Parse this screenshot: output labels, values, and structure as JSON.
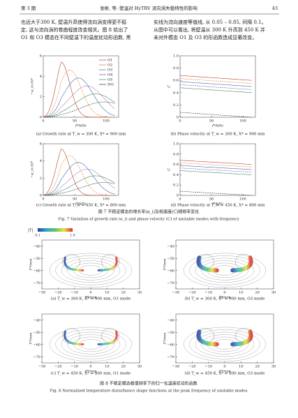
{
  "header": {
    "issue": "第 3 期",
    "title": "张彬, 等: 壁温对 HyTRV 流向涡失稳特性的影响",
    "page": "43"
  },
  "body": {
    "left": [
      "也远大于300 K, 壁温升高使得流向涡变得更不稳",
      "定, 这与流向涡的卷曲程度改变相关。图 8 给出了",
      "O1 和 O3 模态在不同壁温下的温度扰动形函数, 黑"
    ],
    "right": [
      "实线为流向速度等值线, 从 0.05 – 0.85, 间隔 0.1。",
      "从图中可以看出, 将壁温从 300 K 升高到 450 K 并",
      "未对外模态 O1 及 O3 的形函数造成显著改变。"
    ]
  },
  "fig7": {
    "growth_axes": {
      "xlim": [
        0,
        120
      ],
      "ylim": [
        0,
        6
      ],
      "xticks": [
        0,
        50,
        100
      ],
      "yticks": [
        0,
        2,
        4,
        6
      ],
      "xlabel": "f*/kHz",
      "ylabel": "−α_i×10³"
    },
    "phase_axes": {
      "xlim": [
        0,
        120
      ],
      "ylim": [
        0,
        1
      ],
      "xticks": [
        0,
        50,
        100
      ],
      "yticks": [
        0,
        0.2,
        0.4,
        0.6,
        0.8,
        {
          "value": 1,
          "label": "1.0"
        }
      ],
      "xlabel": "f*/kHz",
      "ylabel": "C"
    },
    "legend": [
      "O1",
      "O2",
      "O3",
      "O4",
      "O5",
      "IN1"
    ],
    "captions": [
      "(a) Growth rate at T_w = 300 K, X* = 900 mm",
      "(b) Phase velocity at T_w = 300 K, X* = 900 mm",
      "(c) Growth rate at T_w = 450 K, X* = 800 mm",
      "(d) Phase velocity at T_w = 450 K, X* = 800 mm"
    ],
    "caption_cn": "图 7   不稳定模态的增长率(α_i)及相速度(C)随频率变化",
    "caption_en": "Fig. 7   Variation of growth rate (α_i) and phase velocity (C) of unstable modes with frequency"
  },
  "fig8": {
    "colorbar": {
      "title": "|T|",
      "min": {
        "value": 0.1,
        "label": "0.1"
      },
      "max": {
        "value": 1,
        "label": "1.0"
      }
    },
    "axes": {
      "xlim": [
        -30,
        30
      ],
      "ylim": [
        -75,
        -35
      ],
      "xticks": [
        {
          "value": -30,
          "label": "−30"
        },
        {
          "value": -20,
          "label": "−20"
        },
        {
          "value": -10,
          "label": "−10"
        },
        0,
        10,
        20,
        30
      ],
      "yticks": [
        {
          "value": -40,
          "label": "−40"
        },
        {
          "value": -50,
          "label": "−50"
        },
        {
          "value": -60,
          "label": "−60"
        },
        {
          "value": -70,
          "label": "−70"
        }
      ],
      "xlabel": "Z*/mm",
      "ylabel": "Y*/mm"
    },
    "captions": [
      "(a) T_w = 300 K, X* = 900 mm, O1 mode",
      "(b) T_w = 300 K, X* = 900 mm, O3 mode",
      "(c) T_w = 450 K, X* = 800 mm, O1 mode",
      "(d) T_w = 450 K, X* = 800 mm, O3 mode"
    ],
    "caption_cn": "图 8   不稳定模态峰值频率下的归一化温度扰动形函数",
    "caption_en": "Fig. 8   Normalized temperature disturbance shape functions at the peak frequency of unstable modes"
  }
}
